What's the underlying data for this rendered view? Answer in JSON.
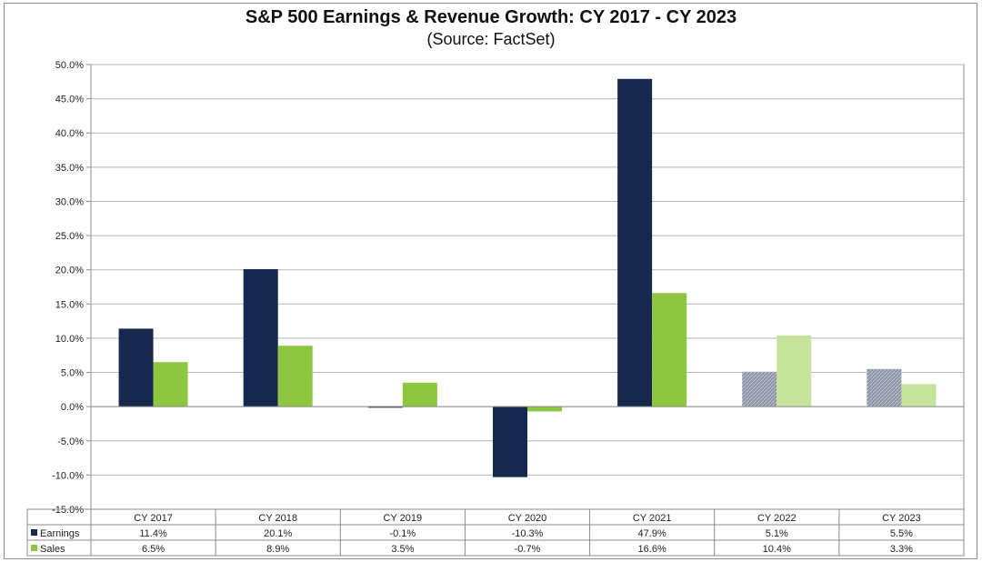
{
  "chart_data": {
    "type": "bar",
    "title": "S&P 500 Earnings & Revenue Growth:  CY 2017 - CY 2023",
    "subtitle": "(Source:  FactSet)",
    "categories": [
      "CY 2017",
      "CY 2018",
      "CY 2019",
      "CY 2020",
      "CY 2021",
      "CY 2022",
      "CY 2023"
    ],
    "series": [
      {
        "name": "Earnings",
        "values": [
          11.4,
          20.1,
          -0.1,
          -10.3,
          47.9,
          5.1,
          5.5
        ],
        "labels": [
          "11.4%",
          "20.1%",
          "-0.1%",
          "-10.3%",
          "47.9%",
          "5.1%",
          "5.5%"
        ],
        "color": "#17284f",
        "estimate_color": "#8a93a6"
      },
      {
        "name": "Sales",
        "values": [
          6.5,
          8.9,
          3.5,
          -0.7,
          16.6,
          10.4,
          3.3
        ],
        "labels": [
          "6.5%",
          "8.9%",
          "3.5%",
          "-0.7%",
          "16.6%",
          "10.4%",
          "3.3%"
        ],
        "color": "#8dc63f",
        "estimate_color": "#c6e39c"
      }
    ],
    "estimated_categories": [
      "CY 2022",
      "CY 2023"
    ],
    "ylim": [
      -15,
      50
    ],
    "ytick_step": 5,
    "ytick_labels": [
      "-15.0%",
      "-10.0%",
      "-5.0%",
      "0.0%",
      "5.0%",
      "10.0%",
      "15.0%",
      "20.0%",
      "25.0%",
      "30.0%",
      "35.0%",
      "40.0%",
      "45.0%",
      "50.0%"
    ],
    "grid": true,
    "legend": "data-table",
    "xlabel": "",
    "ylabel": ""
  }
}
